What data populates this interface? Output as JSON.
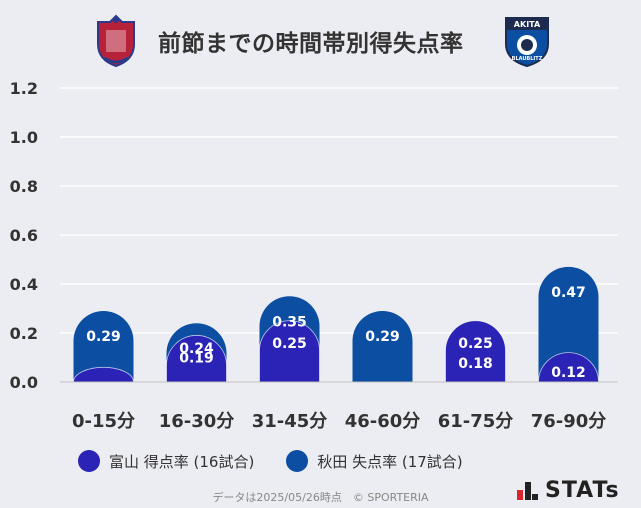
{
  "header": {
    "title": "前節までの時間帯別得失点率",
    "left_logo": "toyama-crest",
    "right_logo": "akita-crest",
    "right_logo_text": "AKITA",
    "right_logo_sub": "BLAUBLITZ"
  },
  "chart_data": {
    "type": "bar",
    "categories": [
      "0-15分",
      "16-30分",
      "31-45分",
      "46-60分",
      "61-75分",
      "76-90分"
    ],
    "series": [
      {
        "name": "富山 得点率 (16試合)",
        "values": [
          0.06,
          0.19,
          0.25,
          0.0,
          0.25,
          0.12
        ],
        "labels": [
          "",
          "0.19",
          "0.25",
          "",
          "0.25",
          "0.12"
        ],
        "color": "#2b22b6"
      },
      {
        "name": "秋田 失点率 (17試合)",
        "values": [
          0.29,
          0.24,
          0.35,
          0.29,
          0.18,
          0.47
        ],
        "labels": [
          "0.29",
          "0.24",
          "0.35",
          "0.29",
          "0.18",
          "0.47"
        ],
        "color": "#0b4ea2"
      }
    ],
    "stacked": true,
    "ylim": [
      0,
      1.2
    ],
    "yticks": [
      "0.0",
      "0.2",
      "0.4",
      "0.6",
      "0.8",
      "1.0",
      "1.2"
    ],
    "grid": true
  },
  "legend": [
    {
      "label": "富山 得点率 (16試合)",
      "color": "#2b22b6"
    },
    {
      "label": "秋田 失点率 (17試合)",
      "color": "#0b4ea2"
    }
  ],
  "footer": {
    "text": "データは2025/05/26時点　© SPORTERIA"
  },
  "brand": {
    "text": "STATs",
    "icon": "stats-bars-icon"
  }
}
